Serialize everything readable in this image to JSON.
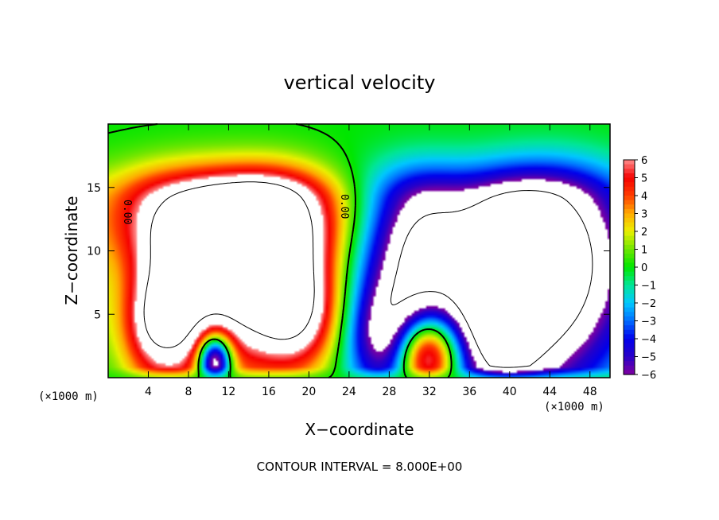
{
  "chart_data": {
    "type": "heatmap",
    "title": "vertical velocity",
    "xlabel": "X−coordinate",
    "ylabel": "Z−coordinate",
    "x_unit_label": "(×1000 m)",
    "x_ticks": [
      4,
      8,
      12,
      16,
      20,
      24,
      28,
      32,
      36,
      40,
      44,
      48
    ],
    "y_ticks": [
      5,
      10,
      15
    ],
    "xlim": [
      0,
      50
    ],
    "ylim": [
      0,
      20
    ],
    "footer": "CONTOUR INTERVAL = 8.000E+00",
    "contour_labels": [
      "0.00",
      "0.00"
    ],
    "colorbar": {
      "labels": [
        "6",
        "5",
        "4",
        "3",
        "2",
        "1",
        "0",
        "−1",
        "−2",
        "−3",
        "−4",
        "−5",
        "−6"
      ],
      "range": [
        -6,
        6
      ]
    },
    "blobs": [
      {
        "x": 10,
        "y": 9,
        "sx": 7,
        "sy": 6,
        "a": 9
      },
      {
        "x": 17,
        "y": 10,
        "sx": 4,
        "sy": 5,
        "a": 6
      },
      {
        "x": 13,
        "y": 13,
        "sx": 10,
        "sy": 3,
        "a": 4
      },
      {
        "x": 5,
        "y": 4,
        "sx": 3,
        "sy": 3,
        "a": 5
      },
      {
        "x": 19,
        "y": 5,
        "sx": 3,
        "sy": 3,
        "a": 5
      },
      {
        "x": 10.5,
        "y": 1.5,
        "sx": 1.2,
        "sy": 1.5,
        "a": -11
      },
      {
        "x": 31,
        "y": 11,
        "sx": 4,
        "sy": 5,
        "a": -6
      },
      {
        "x": 28,
        "y": 3,
        "sx": 3,
        "sy": 3,
        "a": -6
      },
      {
        "x": 39,
        "y": 5,
        "sx": 3,
        "sy": 6,
        "a": -6
      },
      {
        "x": 44,
        "y": 9,
        "sx": 5,
        "sy": 7,
        "a": -8
      },
      {
        "x": 36,
        "y": 9,
        "sx": 14,
        "sy": 6,
        "a": -3.5
      },
      {
        "x": 31.5,
        "y": 2,
        "sx": 2.2,
        "sy": 2.2,
        "a": 11
      },
      {
        "x": 1,
        "y": 6,
        "sx": 2,
        "sy": 5,
        "a": -2
      }
    ]
  }
}
